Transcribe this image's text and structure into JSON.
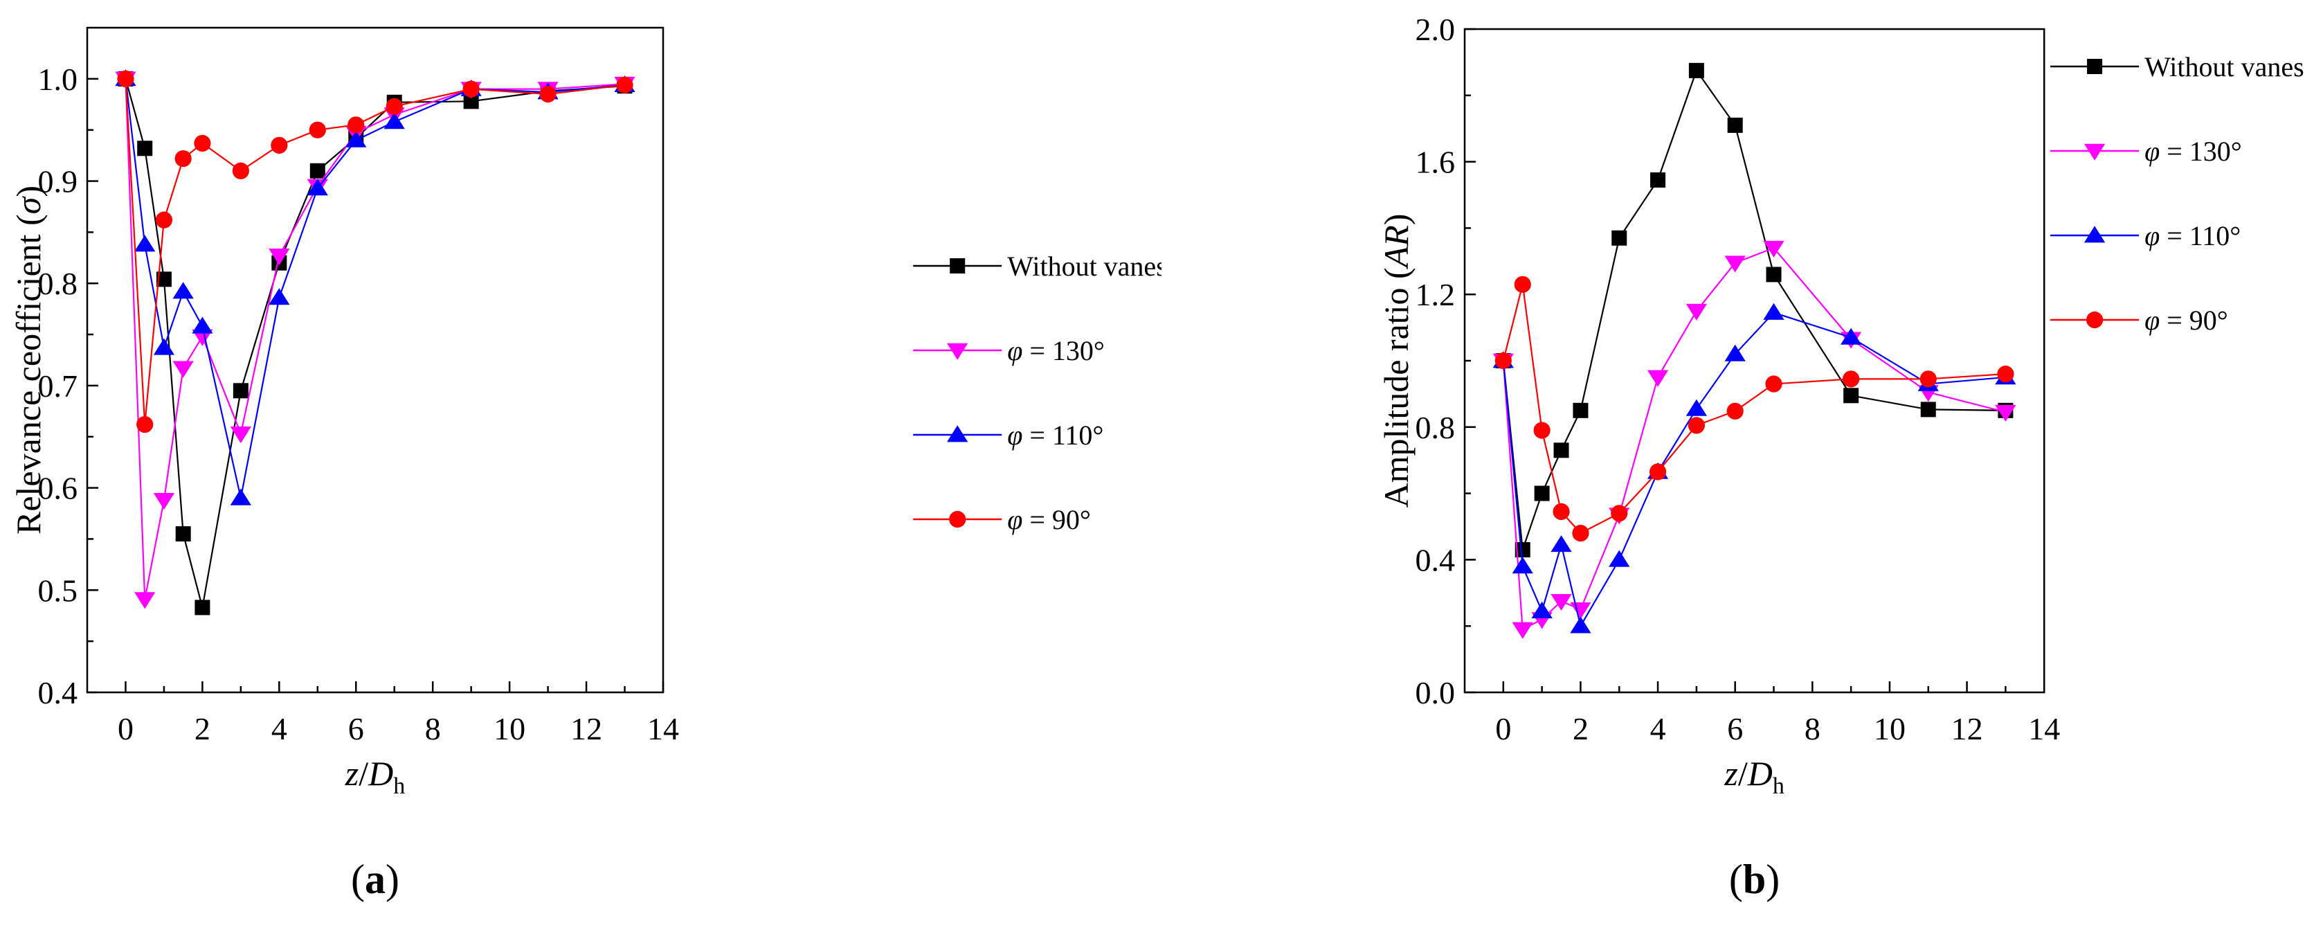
{
  "chart_data": [
    {
      "type": "line",
      "panel_label": "a",
      "xlabel": "z/Dh",
      "xlabel_parts": {
        "z": "z",
        "slash": "/",
        "D": "D",
        "sub": "h"
      },
      "ylabel": "Relevance ceofficient (σ)",
      "ylabel_parts": {
        "text": "Relevance ceofficient (",
        "symbol": "σ",
        "close": ")"
      },
      "xlim": [
        -1,
        14
      ],
      "ylim": [
        0.4,
        1.05
      ],
      "xticks": [
        0,
        2,
        4,
        6,
        8,
        10,
        12,
        14
      ],
      "yticks": [
        0.4,
        0.5,
        0.6,
        0.7,
        0.8,
        0.9,
        1.0
      ],
      "x": [
        0,
        0.5,
        1,
        1.5,
        2,
        3,
        4,
        5,
        6,
        7,
        9,
        11,
        13
      ],
      "legend_position": "center-right",
      "series": [
        {
          "name": "Without vanes",
          "marker": "square",
          "color": "#000000",
          "values": [
            1.0,
            0.932,
            0.804,
            0.555,
            0.483,
            0.695,
            0.82,
            0.91,
            0.942,
            0.977,
            0.978,
            0.988,
            0.993
          ]
        },
        {
          "name": "φ = 130°",
          "name_parts": {
            "symbol": "φ",
            "rest": " = 130°"
          },
          "marker": "triangle-down",
          "color": "#ff00ff",
          "values": [
            1.0,
            0.491,
            0.588,
            0.717,
            0.748,
            0.653,
            0.827,
            0.895,
            0.947,
            0.965,
            0.99,
            0.99,
            0.995
          ]
        },
        {
          "name": "φ = 110°",
          "name_parts": {
            "symbol": "φ",
            "rest": " = 110°"
          },
          "marker": "triangle-up",
          "color": "#0000ff",
          "values": [
            1.0,
            0.838,
            0.737,
            0.792,
            0.758,
            0.59,
            0.786,
            0.893,
            0.94,
            0.958,
            0.99,
            0.987,
            0.994
          ]
        },
        {
          "name": "φ = 90°",
          "name_parts": {
            "symbol": "φ",
            "rest": " = 90°"
          },
          "marker": "circle",
          "color": "#ff0000",
          "values": [
            1.0,
            0.662,
            0.862,
            0.922,
            0.937,
            0.91,
            0.935,
            0.95,
            0.955,
            0.973,
            0.99,
            0.985,
            0.994
          ]
        }
      ]
    },
    {
      "type": "line",
      "panel_label": "b",
      "xlabel": "z/Dh",
      "xlabel_parts": {
        "z": "z",
        "slash": "/",
        "D": "D",
        "sub": "h"
      },
      "ylabel": "Amplitude ratio (AR)",
      "ylabel_parts": {
        "text": "Amplitude ratio (",
        "symbol": "AR",
        "close": ")"
      },
      "xlim": [
        -1,
        14
      ],
      "ylim": [
        0.0,
        2.0
      ],
      "xticks": [
        0,
        2,
        4,
        6,
        8,
        10,
        12,
        14
      ],
      "yticks": [
        0.0,
        0.4,
        0.8,
        1.2,
        1.6,
        2.0
      ],
      "x": [
        0,
        0.5,
        1,
        1.5,
        2,
        3,
        4,
        5,
        6,
        7,
        9,
        11,
        13
      ],
      "legend_position": "top-right",
      "series": [
        {
          "name": "Without vanes",
          "marker": "square",
          "color": "#000000",
          "values": [
            1.0,
            0.43,
            0.6,
            0.73,
            0.85,
            1.37,
            1.545,
            1.875,
            1.71,
            1.26,
            0.895,
            0.853,
            0.85
          ]
        },
        {
          "name": "φ = 130°",
          "name_parts": {
            "symbol": "φ",
            "rest": " = 130°"
          },
          "marker": "triangle-down",
          "color": "#ff00ff",
          "values": [
            1.0,
            0.19,
            0.22,
            0.275,
            0.25,
            0.535,
            0.95,
            1.15,
            1.295,
            1.34,
            1.065,
            0.905,
            0.845
          ]
        },
        {
          "name": "φ = 110°",
          "name_parts": {
            "symbol": "φ",
            "rest": " = 110°"
          },
          "marker": "triangle-up",
          "color": "#0000ff",
          "values": [
            1.0,
            0.38,
            0.245,
            0.445,
            0.2,
            0.4,
            0.665,
            0.855,
            1.02,
            1.145,
            1.07,
            0.93,
            0.95
          ]
        },
        {
          "name": "φ = 90°",
          "name_parts": {
            "symbol": "φ",
            "rest": " = 90°"
          },
          "marker": "circle",
          "color": "#ff0000",
          "values": [
            1.0,
            1.23,
            0.79,
            0.545,
            0.48,
            0.54,
            0.665,
            0.805,
            0.848,
            0.93,
            0.945,
            0.945,
            0.96
          ]
        }
      ]
    }
  ]
}
